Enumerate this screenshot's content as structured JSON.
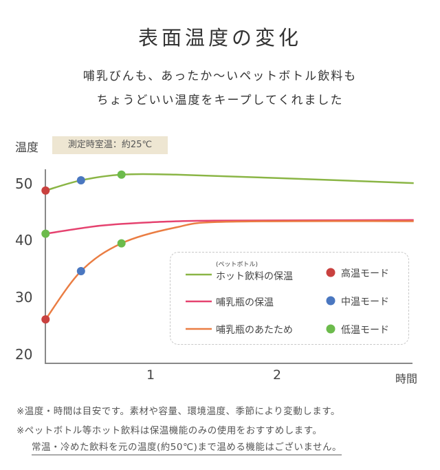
{
  "header": {
    "title": "表面温度の変化",
    "subtitle_lines": [
      "哺乳びんも、あったか〜いペットボトル飲料も",
      "ちょうどいい温度をキープしてくれました"
    ]
  },
  "chart_data": {
    "type": "line",
    "ylabel": "温度",
    "xlabel": "時間",
    "annotation": "測定時室温：約25℃",
    "ylim": [
      20,
      52
    ],
    "xlim": [
      0.17,
      3.08
    ],
    "yticks": [
      "50",
      "40",
      "30",
      "20"
    ],
    "ytick_values": [
      50,
      40,
      30,
      20
    ],
    "xticks": [
      "1",
      "2"
    ],
    "xtick_values": [
      1,
      2
    ],
    "grid": false,
    "legend_position": "bottom-right",
    "series": [
      {
        "name": "ホット飲料の保温",
        "name_note": "(ペットボトル)",
        "color": "#8ab545",
        "points": [
          [
            0.17,
            48.8
          ],
          [
            0.45,
            50.6
          ],
          [
            0.77,
            51.6
          ],
          [
            1.2,
            51.6
          ],
          [
            2.0,
            51.0
          ],
          [
            3.08,
            50.1
          ]
        ],
        "markers": [
          {
            "x": 0.17,
            "y": 48.8,
            "mode": "high"
          },
          {
            "x": 0.45,
            "y": 50.6,
            "mode": "mid"
          },
          {
            "x": 0.77,
            "y": 51.6,
            "mode": "low"
          }
        ]
      },
      {
        "name": "哺乳瓶の保温",
        "color": "#e5426f",
        "points": [
          [
            0.17,
            41.2
          ],
          [
            0.6,
            42.6
          ],
          [
            1.0,
            43.2
          ],
          [
            1.5,
            43.5
          ],
          [
            3.08,
            43.6
          ]
        ],
        "markers": [
          {
            "x": 0.17,
            "y": 41.2,
            "mode": "low"
          }
        ]
      },
      {
        "name": "哺乳瓶のあたため",
        "color": "#ea7d43",
        "points": [
          [
            0.17,
            26.1
          ],
          [
            0.45,
            34.6
          ],
          [
            0.77,
            39.5
          ],
          [
            1.2,
            42.3
          ],
          [
            1.6,
            43.3
          ],
          [
            3.08,
            43.4
          ]
        ],
        "markers": [
          {
            "x": 0.17,
            "y": 26.1,
            "mode": "high"
          },
          {
            "x": 0.45,
            "y": 34.6,
            "mode": "mid"
          },
          {
            "x": 0.77,
            "y": 39.5,
            "mode": "low"
          }
        ]
      }
    ],
    "modes": [
      {
        "key": "high",
        "label": "高温モード",
        "color": "#c9413f"
      },
      {
        "key": "mid",
        "label": "中温モード",
        "color": "#4a77c0"
      },
      {
        "key": "low",
        "label": "低温モード",
        "color": "#6cbb4c"
      }
    ]
  },
  "notes": [
    "※温度・時間は目安です。素材や容量、環境温度、季節により変動します。",
    "※ペットボトル等ホット飲料は保温機能のみの使用をおすすめします。",
    "常温・冷めた飲料を元の温度(約50℃)まで温める機能はございません。"
  ]
}
